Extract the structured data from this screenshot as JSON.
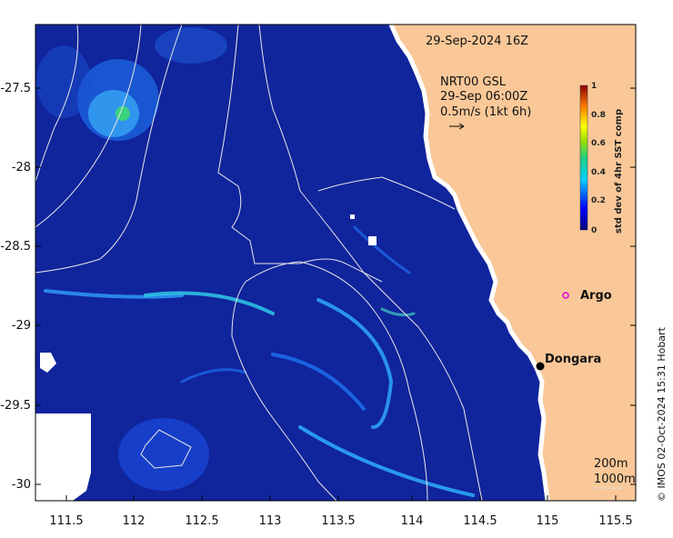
{
  "title": "29-Sep-2024 16Z",
  "current_source": {
    "line1": "NRT00 GSL",
    "line2": "29-Sep 06:00Z",
    "line3": "0.5m/s (1kt 6h)"
  },
  "colorbar": {
    "title": "std dev of 4hr SST comp",
    "ticks": [
      "0",
      "0.2",
      "0.4",
      "0.6",
      "0.8",
      "1"
    ]
  },
  "places": {
    "argo": "Argo",
    "dongara": "Dongara"
  },
  "contours": {
    "c200": "200m",
    "c1000": "1000m"
  },
  "credit": "© IMOS 02-Oct-2024 15:31 Hobart",
  "axes": {
    "x_ticks": [
      "111.5",
      "112",
      "112.5",
      "113",
      "113.5",
      "114",
      "114.5",
      "115",
      "115.5"
    ],
    "y_ticks": [
      "-27.5",
      "-28",
      "-28.5",
      "-29",
      "-29.5",
      "-30"
    ]
  },
  "colors": {
    "ocean": "#10249c",
    "land": "#fac898",
    "argo_marker": "#e000e0"
  }
}
